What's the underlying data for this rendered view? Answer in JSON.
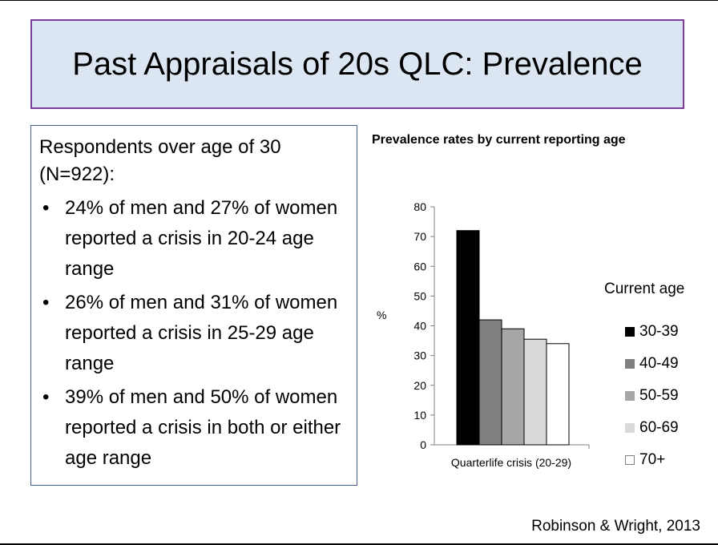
{
  "slide": {
    "title": "Past Appraisals of 20s QLC: Prevalence",
    "citation": "Robinson & Wright, 2013"
  },
  "text_box": {
    "intro": "Respondents over age of 30 (N=922):",
    "bullets": [
      "24% of men and 27% of women reported a crisis in 20-24 age range",
      "26% of men and 31% of women reported a crisis in 25-29 age range",
      "39% of men and 50% of women reported a crisis in both or either age range"
    ]
  },
  "chart_data": {
    "type": "bar",
    "title": "Prevalence rates by current reporting age",
    "ylabel": "%",
    "xlabel": "",
    "categories": [
      "Quarterlife crisis (20-29)"
    ],
    "ylim": [
      0,
      80
    ],
    "yticks": [
      "0",
      "10",
      "20",
      "30",
      "40",
      "50",
      "60",
      "70",
      "80"
    ],
    "legend_title": "Current age",
    "legend_position": "right",
    "series": [
      {
        "name": "30-39",
        "values": [
          72
        ],
        "color": "#000000"
      },
      {
        "name": "40-49",
        "values": [
          42
        ],
        "color": "#7f7f7f"
      },
      {
        "name": "50-59",
        "values": [
          39
        ],
        "color": "#a6a6a6"
      },
      {
        "name": "60-69",
        "values": [
          35.5
        ],
        "color": "#d9d9d9"
      },
      {
        "name": "70+",
        "values": [
          34
        ],
        "color": "#ffffff"
      }
    ]
  }
}
